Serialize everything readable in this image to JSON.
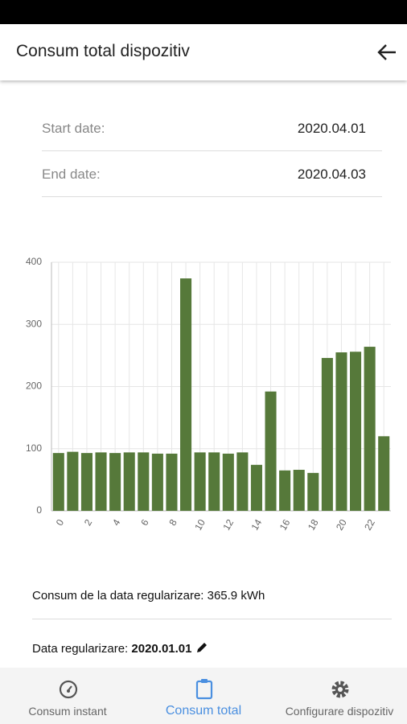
{
  "header": {
    "title": "Consum total dispozitiv"
  },
  "dates": [
    {
      "label": "Start date:",
      "value": "2020.04.01"
    },
    {
      "label": "End date:",
      "value": "2020.04.03"
    }
  ],
  "chart_data": {
    "type": "bar",
    "categories": [
      "0",
      null,
      "2",
      null,
      "4",
      null,
      "6",
      null,
      "8",
      null,
      "10",
      null,
      "12",
      null,
      "14",
      null,
      "16",
      null,
      "18",
      null,
      "20",
      null,
      "22",
      null
    ],
    "values": [
      93,
      95,
      93,
      94,
      93,
      94,
      94,
      92,
      92,
      374,
      94,
      94,
      92,
      94,
      74,
      192,
      65,
      66,
      61,
      246,
      255,
      256,
      264,
      120
    ],
    "color": "#56793a",
    "ylim": [
      0,
      400
    ],
    "yticks": [
      0,
      100,
      200,
      300,
      400
    ],
    "grid": true
  },
  "info": {
    "consum": "Consum de la data regularizare: 365.9 kWh",
    "data_label": "Data regularizare:",
    "data_value": "2020.01.01"
  },
  "nav": [
    {
      "label": "Consum instant"
    },
    {
      "label": "Consum total"
    },
    {
      "label": "Configurare dispozitiv"
    }
  ]
}
